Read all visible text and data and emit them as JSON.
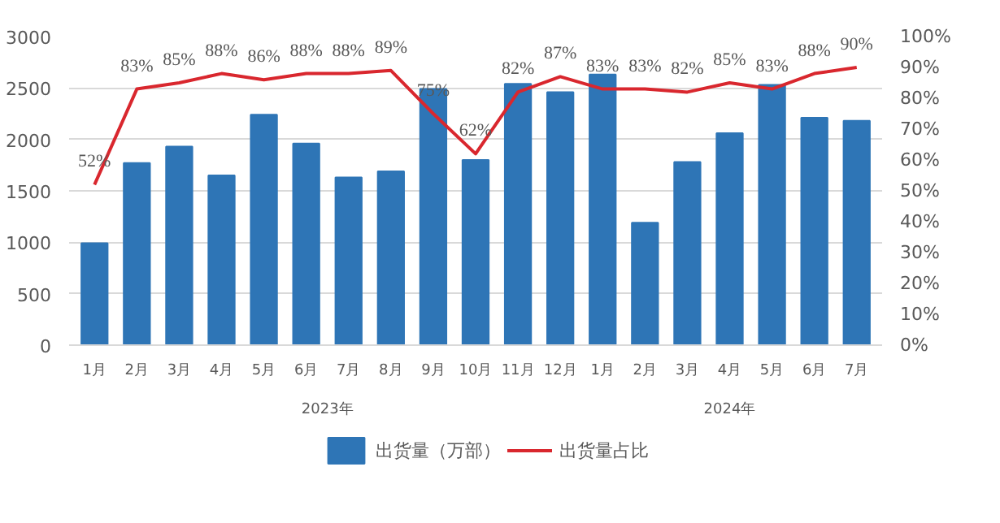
{
  "chart_data": {
    "type": "bar",
    "categories": [
      "1月",
      "2月",
      "3月",
      "4月",
      "5月",
      "6月",
      "7月",
      "8月",
      "9月",
      "10月",
      "11月",
      "12月",
      "1月",
      "2月",
      "3月",
      "4月",
      "5月",
      "6月",
      "7月"
    ],
    "series": [
      {
        "name": "出货量（万部）",
        "color": "#2e75b6",
        "values": [
          990,
          1770,
          1930,
          1650,
          2240,
          1960,
          1630,
          1690,
          2490,
          1800,
          2540,
          2460,
          2630,
          1190,
          1780,
          2060,
          2530,
          2210,
          2180
        ]
      },
      {
        "name": "出货量占比",
        "type": "line",
        "axis": "y2",
        "color": "#d9272e",
        "values": [
          52,
          83,
          85,
          88,
          86,
          88,
          88,
          89,
          75,
          62,
          82,
          87,
          83,
          83,
          82,
          85,
          83,
          88,
          90
        ],
        "value_labels": [
          "52%",
          "83%",
          "85%",
          "88%",
          "86%",
          "88%",
          "88%",
          "89%",
          "75%",
          "62%",
          "82%",
          "87%",
          "83%",
          "83%",
          "82%",
          "85%",
          "83%",
          "88%",
          "90%"
        ]
      }
    ],
    "ylim": [
      0,
      3000
    ],
    "yticks": [
      0,
      500,
      1000,
      1500,
      2000,
      2500,
      3000
    ],
    "y2lim": [
      0,
      100
    ],
    "y2ticks": [
      {
        "value": 0,
        "label": "0%"
      },
      {
        "value": 10,
        "label": "10%"
      },
      {
        "value": 20,
        "label": "20%"
      },
      {
        "value": 30,
        "label": "30%"
      },
      {
        "value": 40,
        "label": "40%"
      },
      {
        "value": 50,
        "label": "50%"
      },
      {
        "value": 60,
        "label": "60%"
      },
      {
        "value": 70,
        "label": "70%"
      },
      {
        "value": 80,
        "label": "80%"
      },
      {
        "value": 90,
        "label": "90%"
      },
      {
        "value": 100,
        "label": "100%"
      }
    ],
    "annotations": [
      "2023年",
      "2024年"
    ],
    "grid": "y",
    "legend": "bottom"
  }
}
